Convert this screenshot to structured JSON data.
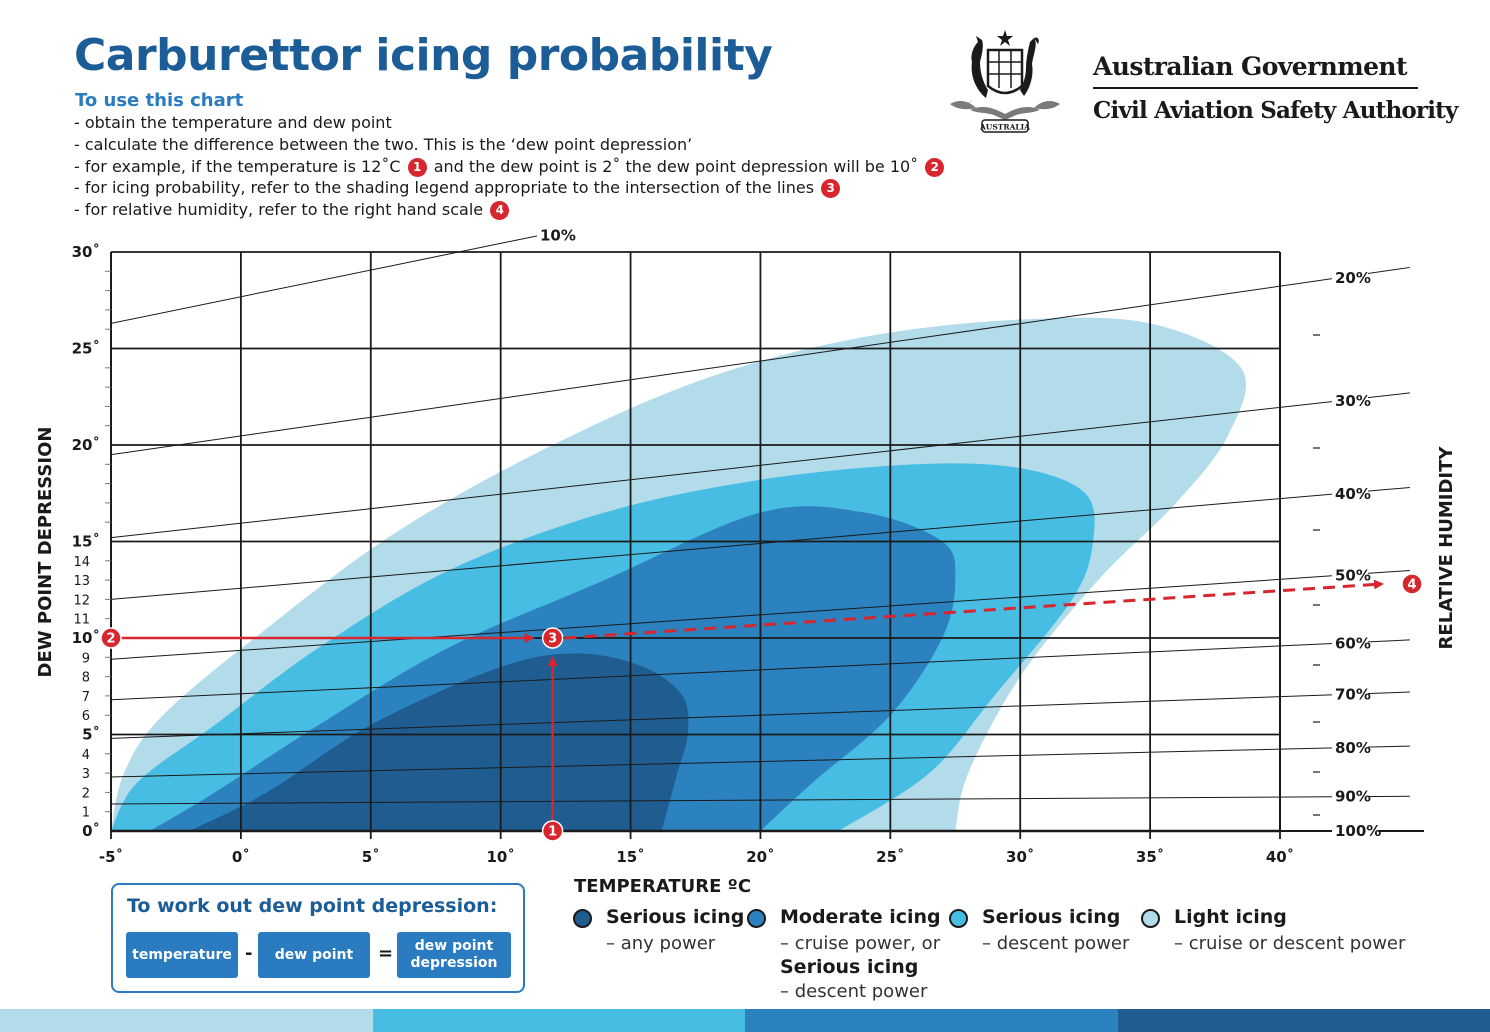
{
  "header": {
    "title": "Carburettor icing probability",
    "subtitle": "To use this chart",
    "steps": [
      {
        "text": "obtain the temperature and dew point"
      },
      {
        "text": "calculate the difference between the two. This is the ‘dew point depression’"
      },
      {
        "text_a": "for example, if the temperature is 12˚C",
        "badge_a": "1",
        "text_b": "and the dew point is 2˚ the dew point depression will be 10˚",
        "badge_b": "2"
      },
      {
        "text": "for icing probability, refer to the shading legend appropriate to the intersection of the lines",
        "badge": "3"
      },
      {
        "text": "for relative humidity, refer to the right hand scale",
        "badge": "4"
      }
    ]
  },
  "agency": {
    "government": "Australian Government",
    "authority": "Civil Aviation Safety Authority",
    "logo_icon": "coat-of-arms-icon",
    "logo_text": "AUSTRALIA"
  },
  "chart_data": {
    "type": "area",
    "xlabel": "TEMPERATURE ºC",
    "ylabel": "DEW POINT DEPRESSION",
    "y2label": "RELATIVE HUMIDITY",
    "xlim": [
      -5,
      40
    ],
    "ylim": [
      0,
      30
    ],
    "x_ticks": [
      "-5˚",
      "0˚",
      "5˚",
      "10˚",
      "15˚",
      "20˚",
      "25˚",
      "30˚",
      "35˚",
      "40˚"
    ],
    "y_ticks_major": [
      {
        "value": 0,
        "label": "0˚"
      },
      {
        "value": 5,
        "label": "5˚"
      },
      {
        "value": 10,
        "label": "10˚"
      },
      {
        "value": 15,
        "label": "15˚"
      },
      {
        "value": 20,
        "label": "20˚"
      },
      {
        "value": 25,
        "label": "25˚"
      },
      {
        "value": 30,
        "label": "30˚"
      }
    ],
    "y_ticks_minor": [
      1,
      2,
      3,
      4,
      6,
      7,
      8,
      9,
      11,
      12,
      13,
      14
    ],
    "grid": true,
    "humidity_lines": [
      {
        "label": "10%",
        "x1": -5,
        "y1": 26.3,
        "x2": 12,
        "y2": 31.0
      },
      {
        "label": "20%",
        "x1": -5,
        "y1": 19.5,
        "x2": 45,
        "y2": 29.2
      },
      {
        "label": "30%",
        "x1": -5,
        "y1": 15.2,
        "x2": 45,
        "y2": 22.7
      },
      {
        "label": "40%",
        "x1": -5,
        "y1": 12.0,
        "x2": 45,
        "y2": 17.8
      },
      {
        "label": "50%",
        "x1": -5,
        "y1": 8.9,
        "x2": 45,
        "y2": 13.5
      },
      {
        "label": "60%",
        "x1": -5,
        "y1": 6.8,
        "x2": 45,
        "y2": 9.9
      },
      {
        "label": "70%",
        "x1": -5,
        "y1": 4.8,
        "x2": 45,
        "y2": 7.2
      },
      {
        "label": "80%",
        "x1": -5,
        "y1": 2.8,
        "x2": 45,
        "y2": 4.4
      },
      {
        "label": "90%",
        "x1": -5,
        "y1": 1.4,
        "x2": 45,
        "y2": 1.8
      },
      {
        "label": "100%",
        "x1": -5,
        "y1": 0.0,
        "x2": 45,
        "y2": 0.0
      }
    ],
    "regions": [
      {
        "name": "Light icing",
        "color": "#b3dcea",
        "boundary": [
          [
            -5,
            0
          ],
          [
            -4.5,
            3
          ],
          [
            -3,
            6
          ],
          [
            1,
            10.5
          ],
          [
            6,
            15.5
          ],
          [
            12,
            20
          ],
          [
            18,
            23.5
          ],
          [
            24,
            25.6
          ],
          [
            30,
            26.5
          ],
          [
            35,
            26.3
          ],
          [
            38.5,
            24
          ],
          [
            38,
            20.5
          ],
          [
            36,
            17
          ],
          [
            33,
            13
          ],
          [
            30,
            8
          ],
          [
            28,
            3
          ],
          [
            27.5,
            0
          ]
        ]
      },
      {
        "name": "Serious icing – descent power",
        "color": "#47bde3",
        "boundary": [
          [
            -5,
            0
          ],
          [
            -4,
            2.5
          ],
          [
            -1,
            5.5
          ],
          [
            3,
            9.5
          ],
          [
            8,
            13.5
          ],
          [
            14,
            16.5
          ],
          [
            20,
            18.2
          ],
          [
            26,
            19
          ],
          [
            30,
            18.8
          ],
          [
            32.5,
            17.5
          ],
          [
            32.8,
            15
          ],
          [
            32,
            12
          ],
          [
            29,
            7
          ],
          [
            26.5,
            3
          ],
          [
            23,
            0
          ]
        ]
      },
      {
        "name": "Moderate icing – cruise power, or Serious icing – descent power",
        "color": "#2c81bf",
        "boundary": [
          [
            -3.5,
            0
          ],
          [
            -1,
            2
          ],
          [
            3,
            5.5
          ],
          [
            8,
            9.5
          ],
          [
            14,
            13
          ],
          [
            20,
            16.5
          ],
          [
            24,
            16.5
          ],
          [
            27,
            15
          ],
          [
            27.5,
            13
          ],
          [
            27,
            10
          ],
          [
            25,
            6
          ],
          [
            22,
            2.5
          ],
          [
            20,
            0
          ]
        ]
      },
      {
        "name": "Serious icing – any power",
        "color": "#1f5d91",
        "boundary": [
          [
            -2,
            0
          ],
          [
            1,
            2
          ],
          [
            5,
            5.5
          ],
          [
            10,
            8.5
          ],
          [
            13,
            9.2
          ],
          [
            15.5,
            8.5
          ],
          [
            17,
            7
          ],
          [
            17.2,
            5
          ],
          [
            16.8,
            3
          ],
          [
            16.2,
            0
          ]
        ]
      }
    ],
    "example": {
      "temperature": 12,
      "dew_point": 2,
      "dew_point_depression": 10,
      "relative_humidity_end": [
        45,
        12.8
      ],
      "markers": [
        {
          "label": "1",
          "x": 12,
          "y": 0
        },
        {
          "label": "2",
          "x": -5,
          "y": 10
        },
        {
          "label": "3",
          "x": 12,
          "y": 10
        },
        {
          "label": "4",
          "x": 45,
          "y": 12.8
        }
      ]
    }
  },
  "formula": {
    "title": "To work out dew point depression:",
    "term1": "temperature",
    "op1": "-",
    "term2": "dew point",
    "op2": "=",
    "result": "dew point depression"
  },
  "legend": [
    {
      "name": "Serious icing",
      "sub": "– any power",
      "color": "#1f5d91"
    },
    {
      "name": "Moderate icing",
      "sub": "– cruise power, or",
      "name2": "Serious icing",
      "sub2": "– descent power",
      "color": "#2c81bf"
    },
    {
      "name": "Serious icing",
      "sub": "– descent power",
      "color": "#47bde3"
    },
    {
      "name": "Light icing",
      "sub": "– cruise or descent power",
      "color": "#b3dcea"
    }
  ],
  "footer_colors": [
    "#b3dcea",
    "#47bde3",
    "#2c81bf",
    "#1f5d91"
  ]
}
